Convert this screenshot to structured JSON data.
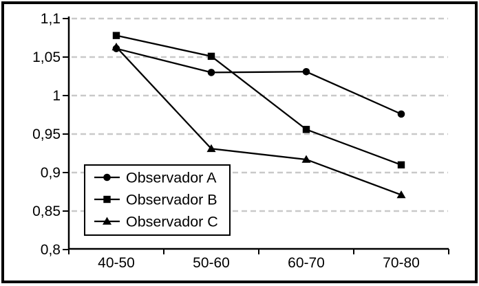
{
  "chart_data": {
    "type": "line",
    "title": "",
    "xlabel": "",
    "ylabel": "",
    "categories": [
      "40-50",
      "50-60",
      "60-70",
      "70-80"
    ],
    "series": [
      {
        "name": "Observador A",
        "marker": "circle",
        "values": [
          1.061,
          1.03,
          1.031,
          0.976
        ]
      },
      {
        "name": "Observador B",
        "marker": "square",
        "values": [
          1.078,
          1.051,
          0.956,
          0.91
        ]
      },
      {
        "name": "Observador C",
        "marker": "triangle",
        "values": [
          1.063,
          0.931,
          0.917,
          0.871
        ]
      }
    ],
    "ylim": [
      0.8,
      1.1
    ],
    "ytick_step": 0.05,
    "yticks": [
      1.1,
      1.05,
      1.0,
      0.95,
      0.9,
      0.85,
      0.8
    ],
    "ytick_labels": [
      "1,1",
      "1,05",
      "1",
      "0,95",
      "0,9",
      "0,85",
      "0,8"
    ],
    "grid": "horizontal-dashed",
    "legend_position": "inside-bottom-left",
    "colors": {
      "line": "#000000",
      "marker": "#000000",
      "grid": "#c9c9c9",
      "axis": "#000000",
      "text": "#000000",
      "background": "#ffffff",
      "frame": "#000000",
      "legend_background": "#ffffff",
      "legend_border": "#000000"
    }
  }
}
